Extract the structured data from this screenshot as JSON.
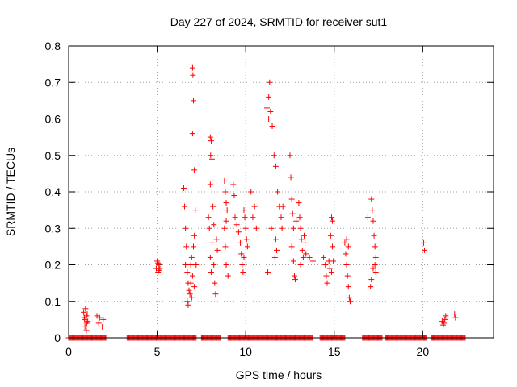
{
  "chart_data": {
    "type": "scatter",
    "title": "Day 227 of 2024, SRMTID for receiver sut1",
    "xlabel": "GPS time / hours",
    "ylabel": "SRMTID / TECUs",
    "xlim": [
      0,
      24
    ],
    "ylim": [
      0,
      0.8
    ],
    "xticks": [
      0,
      5,
      10,
      15,
      20
    ],
    "yticks": [
      0,
      0.1,
      0.2,
      0.3,
      0.4,
      0.5,
      0.6,
      0.7,
      0.8
    ],
    "xtick_labels": [
      "0",
      "5",
      "10",
      "15",
      "20"
    ],
    "ytick_labels": [
      "0",
      "0.1",
      "0.2",
      "0.3",
      "0.4",
      "0.5",
      "0.6",
      "0.7",
      "0.8"
    ],
    "grid": true,
    "marker": "+",
    "color": "#ff0000",
    "series": [
      {
        "name": "SRMTID",
        "points": [
          [
            0.85,
            0.07
          ],
          [
            0.9,
            0.05
          ],
          [
            0.92,
            0.03
          ],
          [
            0.95,
            0.08
          ],
          [
            1.0,
            0.06
          ],
          [
            1.02,
            0.04
          ],
          [
            1.05,
            0.065
          ],
          [
            1.0,
            0.02
          ],
          [
            0.88,
            0.055
          ],
          [
            1.08,
            0.045
          ],
          [
            1.6,
            0.06
          ],
          [
            1.7,
            0.04
          ],
          [
            1.75,
            0.055
          ],
          [
            1.9,
            0.03
          ],
          [
            1.95,
            0.05
          ],
          [
            4.95,
            0.19
          ],
          [
            5.0,
            0.21
          ],
          [
            5.05,
            0.18
          ],
          [
            5.1,
            0.2
          ],
          [
            5.15,
            0.19
          ],
          [
            5.05,
            0.205
          ],
          [
            5.1,
            0.185
          ],
          [
            6.5,
            0.41
          ],
          [
            6.55,
            0.36
          ],
          [
            6.6,
            0.3
          ],
          [
            6.65,
            0.25
          ],
          [
            6.6,
            0.2
          ],
          [
            6.7,
            0.18
          ],
          [
            6.75,
            0.15
          ],
          [
            6.8,
            0.13
          ],
          [
            6.7,
            0.1
          ],
          [
            6.75,
            0.09
          ],
          [
            6.85,
            0.12
          ],
          [
            6.9,
            0.2
          ],
          [
            6.95,
            0.22
          ],
          [
            7.0,
            0.17
          ],
          [
            7.05,
            0.25
          ],
          [
            7.1,
            0.14
          ],
          [
            7.0,
            0.74
          ],
          [
            7.02,
            0.72
          ],
          [
            7.05,
            0.65
          ],
          [
            7.0,
            0.56
          ],
          [
            7.1,
            0.46
          ],
          [
            7.15,
            0.35
          ],
          [
            7.1,
            0.28
          ],
          [
            7.2,
            0.2
          ],
          [
            6.95,
            0.11
          ],
          [
            6.9,
            0.15
          ],
          [
            7.9,
            0.33
          ],
          [
            7.95,
            0.3
          ],
          [
            8.0,
            0.55
          ],
          [
            8.05,
            0.54
          ],
          [
            8.02,
            0.5
          ],
          [
            8.1,
            0.49
          ],
          [
            8.0,
            0.42
          ],
          [
            8.1,
            0.43
          ],
          [
            8.15,
            0.36
          ],
          [
            8.2,
            0.31
          ],
          [
            8.1,
            0.26
          ],
          [
            8.0,
            0.22
          ],
          [
            8.2,
            0.2
          ],
          [
            8.25,
            0.15
          ],
          [
            8.3,
            0.12
          ],
          [
            8.35,
            0.27
          ],
          [
            8.4,
            0.24
          ],
          [
            8.05,
            0.18
          ],
          [
            8.8,
            0.43
          ],
          [
            8.85,
            0.4
          ],
          [
            8.9,
            0.37
          ],
          [
            8.95,
            0.35
          ],
          [
            8.9,
            0.32
          ],
          [
            8.8,
            0.3
          ],
          [
            8.85,
            0.25
          ],
          [
            8.9,
            0.2
          ],
          [
            9.0,
            0.17
          ],
          [
            9.3,
            0.42
          ],
          [
            9.35,
            0.39
          ],
          [
            9.4,
            0.33
          ],
          [
            9.5,
            0.31
          ],
          [
            9.6,
            0.29
          ],
          [
            9.7,
            0.26
          ],
          [
            9.75,
            0.23
          ],
          [
            9.8,
            0.2
          ],
          [
            9.85,
            0.18
          ],
          [
            9.9,
            0.35
          ],
          [
            9.95,
            0.33
          ],
          [
            10.0,
            0.3
          ],
          [
            10.05,
            0.27
          ],
          [
            10.1,
            0.25
          ],
          [
            9.9,
            0.22
          ],
          [
            10.3,
            0.4
          ],
          [
            10.4,
            0.33
          ],
          [
            10.5,
            0.36
          ],
          [
            10.6,
            0.3
          ],
          [
            11.2,
            0.63
          ],
          [
            11.3,
            0.66
          ],
          [
            11.35,
            0.7
          ],
          [
            11.4,
            0.62
          ],
          [
            11.3,
            0.6
          ],
          [
            11.5,
            0.58
          ],
          [
            11.25,
            0.18
          ],
          [
            11.45,
            0.3
          ],
          [
            11.6,
            0.5
          ],
          [
            11.7,
            0.47
          ],
          [
            11.8,
            0.4
          ],
          [
            11.9,
            0.36
          ],
          [
            11.7,
            0.27
          ],
          [
            11.75,
            0.24
          ],
          [
            11.65,
            0.22
          ],
          [
            12.0,
            0.33
          ],
          [
            12.05,
            0.3
          ],
          [
            12.1,
            0.36
          ],
          [
            12.5,
            0.5
          ],
          [
            12.55,
            0.44
          ],
          [
            12.6,
            0.38
          ],
          [
            12.65,
            0.34
          ],
          [
            12.7,
            0.3
          ],
          [
            12.6,
            0.25
          ],
          [
            12.7,
            0.21
          ],
          [
            12.75,
            0.17
          ],
          [
            12.8,
            0.16
          ],
          [
            12.85,
            0.32
          ],
          [
            13.0,
            0.37
          ],
          [
            13.05,
            0.33
          ],
          [
            13.1,
            0.3
          ],
          [
            13.15,
            0.27
          ],
          [
            13.2,
            0.24
          ],
          [
            13.25,
            0.22
          ],
          [
            13.3,
            0.28
          ],
          [
            13.1,
            0.2
          ],
          [
            13.35,
            0.26
          ],
          [
            13.4,
            0.23
          ],
          [
            13.6,
            0.22
          ],
          [
            13.8,
            0.21
          ],
          [
            14.4,
            0.22
          ],
          [
            14.5,
            0.2
          ],
          [
            14.55,
            0.17
          ],
          [
            14.6,
            0.15
          ],
          [
            14.7,
            0.21
          ],
          [
            14.75,
            0.19
          ],
          [
            14.85,
            0.33
          ],
          [
            14.9,
            0.32
          ],
          [
            14.8,
            0.28
          ],
          [
            14.9,
            0.25
          ],
          [
            14.95,
            0.21
          ],
          [
            14.85,
            0.18
          ],
          [
            15.6,
            0.26
          ],
          [
            15.65,
            0.23
          ],
          [
            15.7,
            0.2
          ],
          [
            15.75,
            0.17
          ],
          [
            15.8,
            0.14
          ],
          [
            15.85,
            0.11
          ],
          [
            15.9,
            0.1
          ],
          [
            15.7,
            0.27
          ],
          [
            15.8,
            0.25
          ],
          [
            16.9,
            0.33
          ],
          [
            17.1,
            0.38
          ],
          [
            17.15,
            0.35
          ],
          [
            17.2,
            0.32
          ],
          [
            17.25,
            0.28
          ],
          [
            17.3,
            0.25
          ],
          [
            17.35,
            0.22
          ],
          [
            17.2,
            0.19
          ],
          [
            17.1,
            0.16
          ],
          [
            17.05,
            0.14
          ],
          [
            17.3,
            0.2
          ],
          [
            17.35,
            0.18
          ],
          [
            20.05,
            0.26
          ],
          [
            20.1,
            0.24
          ],
          [
            21.1,
            0.045
          ],
          [
            21.15,
            0.035
          ],
          [
            21.2,
            0.04
          ],
          [
            21.25,
            0.05
          ],
          [
            21.3,
            0.06
          ],
          [
            21.8,
            0.065
          ],
          [
            21.85,
            0.055
          ]
        ],
        "baseline_ranges": [
          [
            0.0,
            2.1
          ],
          [
            3.3,
            7.2
          ],
          [
            7.5,
            8.6
          ],
          [
            9.0,
            13.8
          ],
          [
            14.2,
            15.6
          ],
          [
            16.6,
            17.7
          ],
          [
            17.9,
            20.2
          ],
          [
            20.5,
            22.4
          ]
        ],
        "baseline_value": 0
      }
    ]
  }
}
